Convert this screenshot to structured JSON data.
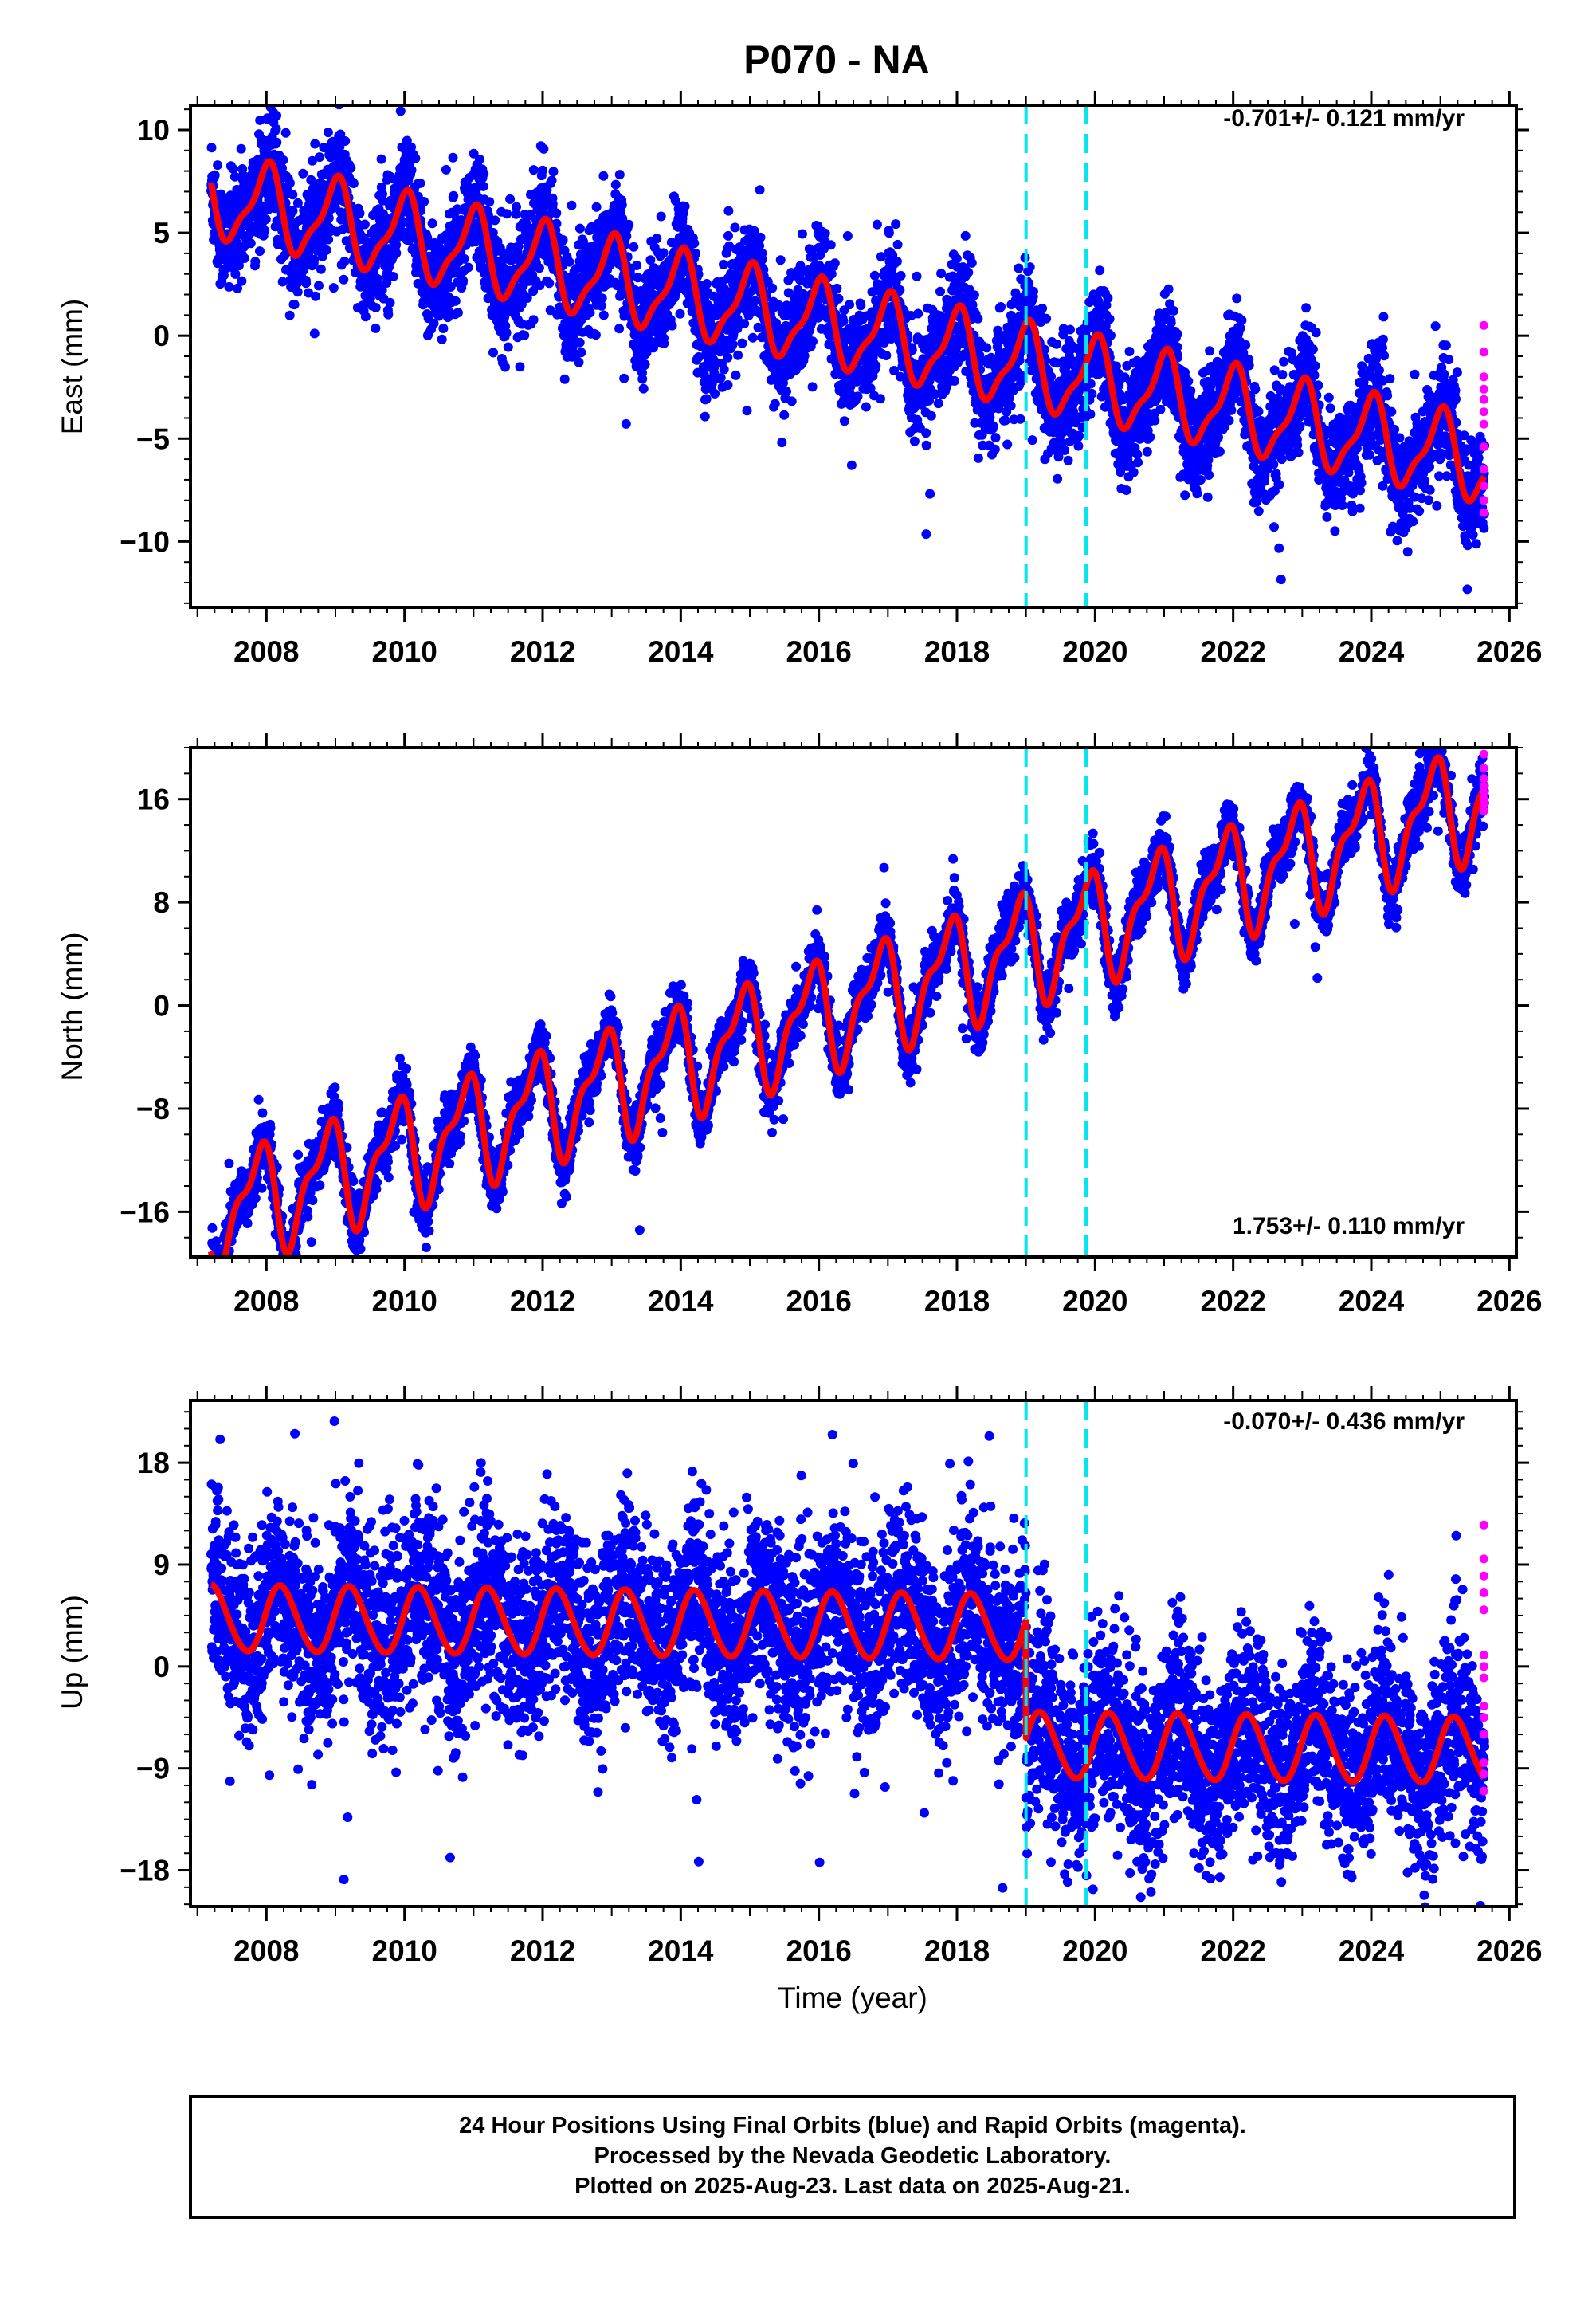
{
  "title": "P070 - NA",
  "colors": {
    "final_points": "#0000ff",
    "rapid_points": "#ff00ff",
    "model": "#ff0000",
    "event_lines": "#00e5ee",
    "frame": "#000000"
  },
  "chart_data": [
    {
      "type": "scatter",
      "component": "east",
      "ylabel": "East (mm)",
      "xlim": [
        2006.9,
        2026.1
      ],
      "ylim": [
        -13.2,
        11.2
      ],
      "yticks": [
        10,
        5,
        0,
        -5,
        -10
      ],
      "yticks_minor_step": 1,
      "xticks": [
        2008,
        2010,
        2012,
        2014,
        2016,
        2018,
        2020,
        2022,
        2024,
        2026
      ],
      "rate_label": "-0.701+/- 0.121 mm/yr",
      "rate_position": "top-right",
      "event_lines": [
        2019.0,
        2019.87
      ],
      "model": {
        "start": 2007.2,
        "end": 2025.64,
        "intercept_at_2016": 0.6,
        "rate_mm_per_yr": -0.701,
        "offsets": [],
        "annual_amp": 1.9,
        "annual_phase": 1.6,
        "semiannual_amp": 0.6,
        "semiannual_phase": 0.4
      },
      "scatter_noise_sd": 1.3,
      "rapid_points": {
        "x": 2025.63,
        "y": [
          0.5,
          -0.8,
          -2.0,
          -2.6,
          -3.1,
          -3.7,
          -4.3,
          -5.4,
          -6.5,
          -7.3,
          -8.0,
          -8.6
        ]
      }
    },
    {
      "type": "scatter",
      "component": "north",
      "ylabel": "North (mm)",
      "xlim": [
        2006.9,
        2026.1
      ],
      "ylim": [
        -19.5,
        20.0
      ],
      "yticks": [
        16,
        8,
        0,
        -8,
        -16
      ],
      "yticks_minor_step": 2,
      "xticks": [
        2008,
        2010,
        2012,
        2014,
        2016,
        2018,
        2020,
        2022,
        2024,
        2026
      ],
      "rate_label": "1.753+/- 0.110 mm/yr",
      "rate_position": "bottom-right",
      "event_lines": [
        2019.0,
        2019.87
      ],
      "model": {
        "start": 2007.2,
        "end": 2025.64,
        "intercept_at_2016": -0.8,
        "rate_mm_per_yr": 1.753,
        "offsets": [],
        "annual_amp": 3.8,
        "annual_phase": 2.4,
        "semiannual_amp": 1.6,
        "semiannual_phase": 1.3
      },
      "scatter_noise_sd": 1.1,
      "rapid_points": {
        "x": 2025.63,
        "y": [
          19.5,
          18.4,
          17.6,
          17.0,
          16.5,
          16.0,
          15.6,
          15.1
        ]
      }
    },
    {
      "type": "scatter",
      "component": "up",
      "ylabel": "Up (mm)",
      "xlim": [
        2006.9,
        2026.1
      ],
      "ylim": [
        -21.2,
        23.5
      ],
      "yticks": [
        18,
        9,
        0,
        -9,
        -18
      ],
      "yticks_minor_step": 1.5,
      "xticks": [
        2008,
        2010,
        2012,
        2014,
        2016,
        2018,
        2020,
        2022,
        2024,
        2026
      ],
      "xlabel": "Time (year)",
      "rate_label": "-0.070+/- 0.436 mm/yr",
      "rate_position": "top-right",
      "event_lines": [
        2019.0,
        2019.87
      ],
      "model": {
        "start": 2007.2,
        "end": 2025.64,
        "intercept_at_2016": 3.6,
        "rate_mm_per_yr": -0.07,
        "offsets": [
          {
            "t": 2019.0,
            "dy": -10.4
          }
        ],
        "annual_amp": 2.9,
        "annual_phase": 0.25,
        "semiannual_amp": 0.2,
        "semiannual_phase": 0.0
      },
      "scatter_noise_sd": 4.2,
      "rapid_points": {
        "x": 2025.63,
        "y": [
          12.5,
          9.5,
          8.0,
          6.5,
          5.0,
          1.0,
          0.0,
          -1.0,
          -3.5,
          -4.5,
          -6.0,
          -8.5,
          -9.5,
          -11.0
        ]
      }
    }
  ],
  "footer": {
    "line1": "24 Hour Positions Using Final Orbits (blue) and Rapid Orbits (magenta).",
    "line2": "Processed by the Nevada Geodetic Laboratory.",
    "line3": "Plotted on 2025-Aug-23. Last data on 2025-Aug-21."
  }
}
